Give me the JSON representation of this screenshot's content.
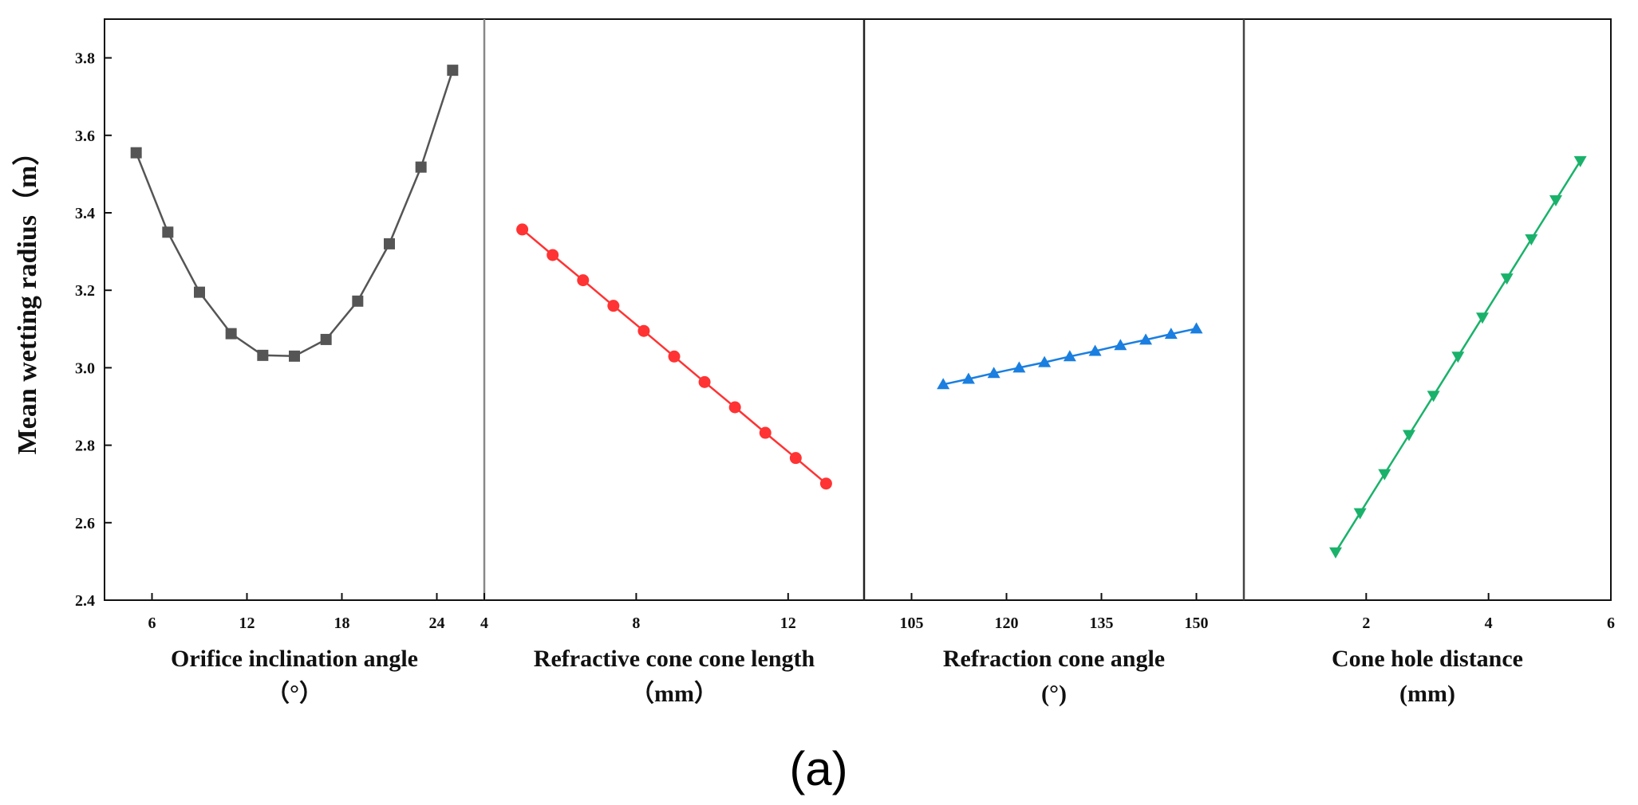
{
  "chart_data": {
    "type": "line",
    "ylabel": "Mean wetting radius（m）",
    "ylim": [
      2.4,
      3.9
    ],
    "yticks": [
      2.4,
      2.6,
      2.8,
      3.0,
      3.2,
      3.4,
      3.6,
      3.8
    ],
    "ytick_labels": [
      "2.4",
      "2.6",
      "2.8",
      "3.0",
      "3.2",
      "3.4",
      "3.6",
      "3.8"
    ],
    "caption": "(a)",
    "panels": [
      {
        "xlabel_line1": "Orifice inclination angle",
        "xlabel_line2": "（°）",
        "xlim": [
          3,
          27
        ],
        "xticks": [
          6,
          12,
          18,
          24
        ],
        "xtick_labels": [
          "6",
          "12",
          "18",
          "24"
        ],
        "marker": "square",
        "color": "#555555",
        "x": [
          5,
          7,
          9,
          11,
          13,
          15,
          17,
          19,
          21,
          23,
          25
        ],
        "y": [
          3.555,
          3.35,
          3.195,
          3.088,
          3.032,
          3.03,
          3.073,
          3.172,
          3.32,
          3.518,
          3.768
        ]
      },
      {
        "xlabel_line1": "Refractive cone cone length",
        "xlabel_line2": "（mm）",
        "xlim": [
          4,
          14
        ],
        "xticks": [
          4,
          8,
          12
        ],
        "xtick_labels": [
          "4",
          "8",
          "12"
        ],
        "marker": "circle",
        "color": "#ff3333",
        "x": [
          5,
          5.8,
          6.6,
          7.4,
          8.2,
          9.0,
          9.8,
          10.6,
          11.4,
          12.2,
          13.0
        ],
        "y": [
          3.357,
          3.291,
          3.226,
          3.16,
          3.095,
          3.029,
          2.963,
          2.898,
          2.832,
          2.767,
          2.701
        ]
      },
      {
        "xlabel_line1": "Refraction cone angle",
        "xlabel_line2": "(°)",
        "xlim": [
          97.5,
          157.5
        ],
        "xticks": [
          105,
          120,
          135,
          150
        ],
        "xtick_labels": [
          "105",
          "120",
          "135",
          "150"
        ],
        "marker": "triangle-up",
        "color": "#1a7fe0",
        "x": [
          110,
          114,
          118,
          122,
          126,
          130,
          134,
          138,
          142,
          146,
          150
        ],
        "y": [
          2.957,
          2.971,
          2.986,
          3.0,
          3.014,
          3.029,
          3.043,
          3.058,
          3.072,
          3.087,
          3.101
        ]
      },
      {
        "xlabel_line1": "Cone hole distance",
        "xlabel_line2": "(mm)",
        "xlim": [
          0,
          6
        ],
        "xticks": [
          2,
          4,
          6
        ],
        "xtick_labels": [
          "2",
          "4",
          "6"
        ],
        "marker": "triangle-down",
        "color": "#1ab26b",
        "x": [
          1.5,
          1.9,
          2.3,
          2.7,
          3.1,
          3.5,
          3.9,
          4.3,
          4.7,
          5.1,
          5.5
        ],
        "y": [
          2.524,
          2.625,
          2.726,
          2.827,
          2.928,
          3.029,
          3.13,
          3.231,
          3.332,
          3.433,
          3.534
        ]
      }
    ]
  }
}
